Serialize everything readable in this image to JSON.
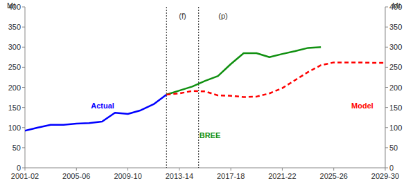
{
  "chart_data": {
    "type": "line",
    "ylabel": "Mt",
    "y2label": "Mt",
    "categories": [
      "2001-02",
      null,
      null,
      null,
      "2005-06",
      null,
      null,
      null,
      "2009-10",
      null,
      null,
      null,
      "2013-14",
      null,
      null,
      null,
      "2017-18",
      null,
      null,
      null,
      "2021-22",
      null,
      null,
      null,
      "2025-26",
      null,
      null,
      null,
      "2029-30"
    ],
    "series": [
      {
        "name": "Actual",
        "color": "#0000ff",
        "line_style": "solid",
        "values": [
          92,
          100,
          107,
          107,
          110,
          111,
          115,
          137,
          134,
          143,
          158,
          182,
          null,
          null,
          null,
          null,
          null,
          null,
          null,
          null,
          null,
          null,
          null,
          null,
          null,
          null,
          null,
          null,
          null
        ]
      },
      {
        "name": "BREE",
        "color": "#109010",
        "line_style": "solid",
        "values": [
          null,
          null,
          null,
          null,
          null,
          null,
          null,
          null,
          null,
          null,
          null,
          182,
          192,
          202,
          216,
          228,
          258,
          285,
          285,
          275,
          283,
          290,
          298,
          300,
          null,
          null,
          null,
          null,
          null
        ]
      },
      {
        "name": "Model",
        "color": "#ff0000",
        "line_style": "dashed",
        "values": [
          null,
          null,
          null,
          null,
          null,
          null,
          null,
          null,
          null,
          null,
          null,
          182,
          185,
          191,
          190,
          180,
          179,
          176,
          177,
          185,
          198,
          218,
          238,
          255,
          262,
          262,
          262,
          261,
          261
        ]
      }
    ],
    "ylim": [
      0,
      400
    ],
    "yticks": [
      0,
      50,
      100,
      150,
      200,
      250,
      300,
      350,
      400
    ],
    "y2lim": [
      0,
      400
    ],
    "y2ticks": [
      0,
      50,
      100,
      150,
      200,
      250,
      300,
      350,
      400
    ],
    "grid": false,
    "vlines": [
      11,
      13.5
    ],
    "annotations": [
      {
        "text": "(f)",
        "x": 12.25
      },
      {
        "text": "(p)",
        "x": 15.4
      }
    ]
  }
}
